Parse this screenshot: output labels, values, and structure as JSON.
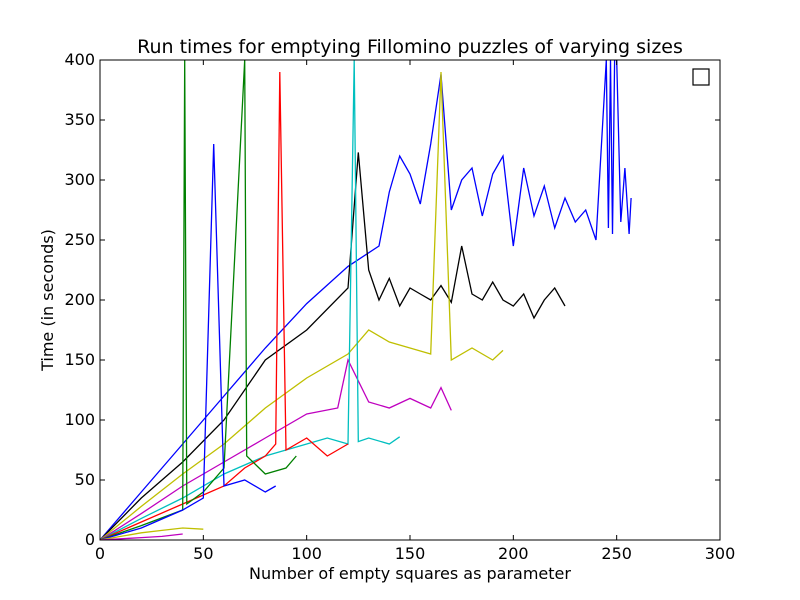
{
  "chart_data": {
    "type": "line",
    "title": "Run times for emptying Fillomino puzzles of varying sizes",
    "xlabel": "Number of empty squares as parameter",
    "ylabel": "Time (in seconds)",
    "xlim": [
      0,
      300
    ],
    "ylim": [
      0,
      400
    ],
    "xticks": [
      "0",
      "50",
      "100",
      "150",
      "200",
      "250",
      "300"
    ],
    "yticks": [
      "0",
      "50",
      "100",
      "150",
      "200",
      "250",
      "300",
      "350",
      "400"
    ],
    "grid": false,
    "legend": "top-right (empty)",
    "series": [
      {
        "color": "#0000ff",
        "x": [
          0,
          20,
          40,
          60,
          80,
          100,
          120,
          135,
          140,
          145,
          150,
          155,
          160,
          165,
          170,
          175,
          180,
          185,
          190,
          195,
          200,
          205,
          210,
          215,
          220,
          225,
          230,
          235,
          240,
          245,
          246,
          247,
          248,
          249,
          250,
          252,
          254,
          256,
          257
        ],
        "y": [
          0,
          40,
          80,
          120,
          160,
          197,
          228,
          245,
          290,
          320,
          305,
          280,
          330,
          388,
          275,
          300,
          310,
          270,
          305,
          320,
          245,
          310,
          270,
          295,
          260,
          285,
          265,
          275,
          250,
          400,
          260,
          400,
          255,
          400,
          400,
          265,
          310,
          255,
          285
        ]
      },
      {
        "color": "#000000",
        "x": [
          0,
          20,
          40,
          60,
          80,
          100,
          120,
          125,
          130,
          135,
          140,
          145,
          150,
          155,
          160,
          165,
          170,
          175,
          180,
          185,
          190,
          195,
          200,
          205,
          210,
          215,
          220,
          225
        ],
        "y": [
          0,
          35,
          65,
          100,
          150,
          175,
          210,
          323,
          225,
          200,
          218,
          195,
          210,
          205,
          200,
          212,
          198,
          245,
          205,
          200,
          215,
          200,
          195,
          205,
          185,
          200,
          210,
          195
        ]
      },
      {
        "color": "#bfbf00",
        "x": [
          0,
          20,
          40,
          60,
          80,
          100,
          120,
          130,
          140,
          150,
          160,
          165,
          170,
          180,
          190,
          195
        ],
        "y": [
          0,
          28,
          55,
          80,
          110,
          135,
          155,
          175,
          165,
          160,
          155,
          390,
          150,
          160,
          150,
          158
        ]
      },
      {
        "color": "#bf00bf",
        "x": [
          0,
          20,
          40,
          60,
          80,
          100,
          115,
          120,
          130,
          140,
          150,
          160,
          165,
          170
        ],
        "y": [
          0,
          22,
          45,
          65,
          85,
          105,
          110,
          150,
          115,
          110,
          118,
          110,
          127,
          108
        ]
      },
      {
        "color": "#00bfbf",
        "x": [
          0,
          20,
          40,
          60,
          80,
          100,
          110,
          120,
          123,
          125,
          130,
          140,
          145
        ],
        "y": [
          0,
          18,
          35,
          55,
          70,
          80,
          85,
          80,
          400,
          82,
          85,
          80,
          86
        ]
      },
      {
        "color": "#ff0000",
        "x": [
          0,
          20,
          40,
          60,
          70,
          80,
          85,
          87,
          90,
          100,
          110,
          120
        ],
        "y": [
          0,
          15,
          30,
          45,
          60,
          70,
          80,
          390,
          75,
          85,
          70,
          80
        ]
      },
      {
        "color": "#008000",
        "x": [
          0,
          20,
          40,
          41,
          42,
          50,
          60,
          70,
          71,
          80,
          90,
          95
        ],
        "y": [
          0,
          12,
          25,
          400,
          30,
          40,
          60,
          400,
          70,
          55,
          60,
          70
        ]
      },
      {
        "color": "#0000ff",
        "x": [
          0,
          20,
          40,
          50,
          55,
          60,
          70,
          80,
          85
        ],
        "y": [
          0,
          10,
          25,
          35,
          330,
          45,
          50,
          40,
          45
        ]
      },
      {
        "color": "#bfbf00",
        "x": [
          0,
          10,
          20,
          30,
          40,
          50
        ],
        "y": [
          0,
          3,
          6,
          8,
          10,
          9
        ]
      },
      {
        "color": "#bf00bf",
        "x": [
          0,
          10,
          20,
          30,
          40
        ],
        "y": [
          0,
          1,
          2,
          3,
          5
        ]
      }
    ]
  }
}
